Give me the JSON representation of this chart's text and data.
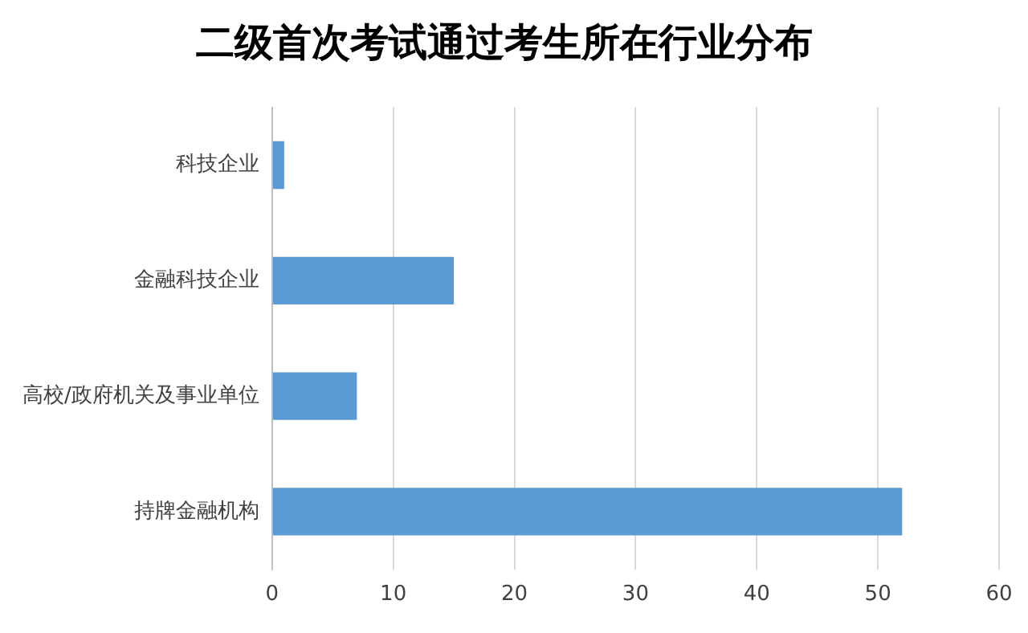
{
  "chart_data": {
    "type": "bar",
    "orientation": "horizontal",
    "title": "二级首次考试通过考生所在行业分布",
    "categories": [
      "科技企业",
      "金融科技企业",
      "高校/政府机关及事业单位",
      "持牌金融机构"
    ],
    "values": [
      1,
      15,
      7,
      52
    ],
    "color": "#5b9bd5",
    "xlim": [
      0,
      60
    ],
    "xticks": [
      0,
      10,
      20,
      30,
      40,
      50,
      60
    ],
    "grid": "x"
  }
}
